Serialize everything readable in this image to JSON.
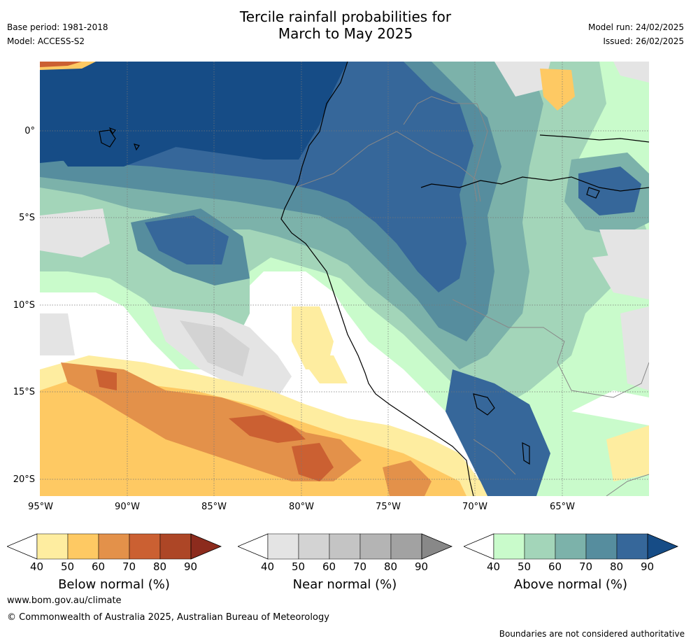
{
  "title": {
    "line1": "Tercile rainfall probabilities for",
    "line2": "March to May 2025"
  },
  "meta": {
    "base_period": "Base period: 1981-2018",
    "model": "Model: ACCESS-S2",
    "model_run": "Model run: 24/02/2025",
    "issued": "Issued: 26/02/2025"
  },
  "map": {
    "lat_labels": [
      "0°",
      "5°S",
      "10°S",
      "15°S",
      "20°S"
    ],
    "lon_labels": [
      "95°W",
      "90°W",
      "85°W",
      "80°W",
      "75°W",
      "70°W",
      "65°W"
    ]
  },
  "colorbars": [
    {
      "name": "below",
      "title": "Below normal (%)",
      "ticks": [
        "40",
        "50",
        "60",
        "70",
        "80",
        "90"
      ],
      "colors": [
        "#ffffff",
        "#feeda0",
        "#fec963",
        "#e3914a",
        "#cb6032",
        "#ad4626",
        "#8c2b1d"
      ]
    },
    {
      "name": "near",
      "title": "Near normal (%)",
      "ticks": [
        "40",
        "50",
        "60",
        "70",
        "80",
        "90"
      ],
      "colors": [
        "#ffffff",
        "#e4e4e4",
        "#d3d3d3",
        "#c4c4c4",
        "#b4b4b4",
        "#a2a2a2",
        "#888888"
      ]
    },
    {
      "name": "above",
      "title": "Above normal (%)",
      "ticks": [
        "40",
        "50",
        "60",
        "70",
        "80",
        "90"
      ],
      "colors": [
        "#ffffff",
        "#c9fbcb",
        "#a3d5b9",
        "#7cb2aa",
        "#568d9e",
        "#36679a",
        "#164c86"
      ]
    }
  ],
  "footer": {
    "url": "www.bom.gov.au/climate",
    "copyright": "© Commonwealth of Australia 2025, Australian Bureau of Meteorology",
    "note": "Boundaries are not considered authoritative"
  }
}
